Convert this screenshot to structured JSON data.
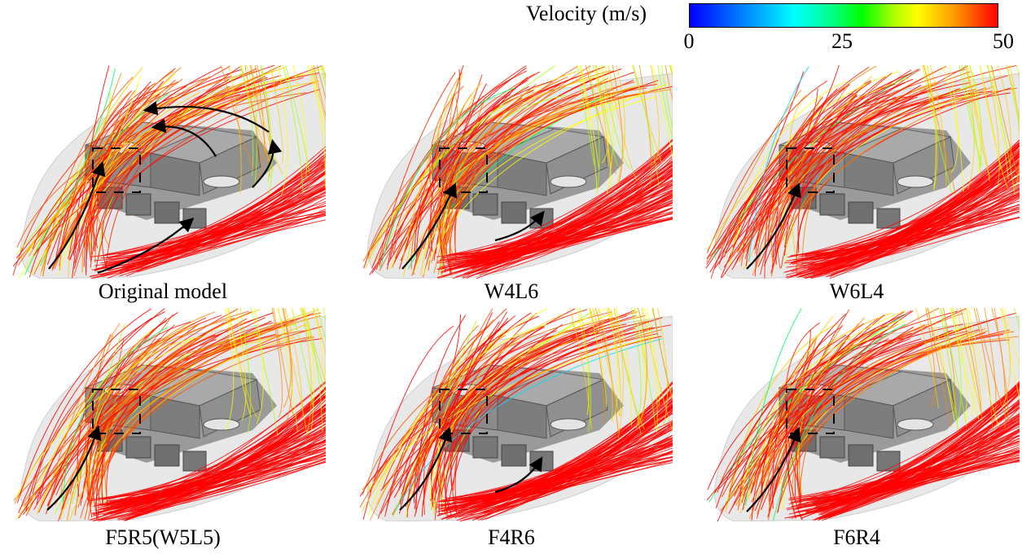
{
  "legend": {
    "title": "Velocity (m/s)",
    "ticks": [
      "0",
      "25",
      "50"
    ],
    "colors": [
      "#0000ff",
      "#00ffff",
      "#00ff00",
      "#ffff00",
      "#ff0000"
    ]
  },
  "panels": [
    {
      "label": "Original model"
    },
    {
      "label": "W4L6"
    },
    {
      "label": "W6L4"
    },
    {
      "label": "F5R5(W5L5)"
    },
    {
      "label": "F4R6"
    },
    {
      "label": "F6R4"
    }
  ]
}
